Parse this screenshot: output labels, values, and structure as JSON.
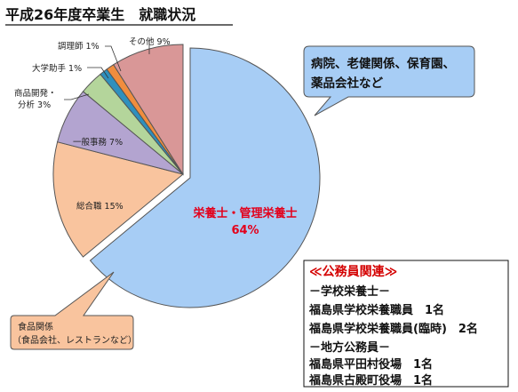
{
  "page_title": "平成26年度卒業生　就職状況",
  "chart_data": {
    "type": "pie",
    "title": "平成26年度卒業生　就職状況",
    "slices": [
      {
        "name": "栄養士・管理栄養士",
        "percent": 64,
        "label": "64%",
        "color": "#a7cdf5"
      },
      {
        "name": "総合職",
        "percent": 15,
        "label": "15%",
        "color": "#f9c49e"
      },
      {
        "name": "一般事務",
        "percent": 7,
        "label": "7%",
        "color": "#b3a4d0"
      },
      {
        "name": "商品開発・分析",
        "percent": 3,
        "label": "3%",
        "color": "#b4d59b"
      },
      {
        "name": "大学助手",
        "percent": 1,
        "label": "1%",
        "color": "#2f90bd"
      },
      {
        "name": "調理師",
        "percent": 1,
        "label": "1%",
        "color": "#f08d3e"
      },
      {
        "name": "その他",
        "percent": 9,
        "label": "9%",
        "color": "#d99797"
      }
    ],
    "slice_labels": {
      "main_name": "栄養士・管理栄養士",
      "main_value": "64%",
      "sogo": "総合職 15%",
      "ippan": "一般事務 7%",
      "shohin_line1": "商品開発・",
      "shohin_line2": "分析 3%",
      "joshu": "大学助手 1%",
      "chori": "調理師 1%",
      "sonota": "その他 9%"
    }
  },
  "callout_blue": {
    "line1": "病院、老健関係、保育園、",
    "line2": "薬品会社など",
    "color": "#a7cdf5"
  },
  "callout_orange": {
    "line1": "食品関係",
    "line2": "（食品会社、レストランなど）",
    "color": "#f9c49e"
  },
  "public_box": {
    "heading": "≪公務員関連≫",
    "lines": [
      "－学校栄養士－",
      "福島県学校栄養職員　1名",
      "福島県学校栄養職員(臨時)　2名",
      "－地方公務員－",
      "福島県平田村役場　1名",
      "福島県古殿町役場　1名"
    ]
  }
}
